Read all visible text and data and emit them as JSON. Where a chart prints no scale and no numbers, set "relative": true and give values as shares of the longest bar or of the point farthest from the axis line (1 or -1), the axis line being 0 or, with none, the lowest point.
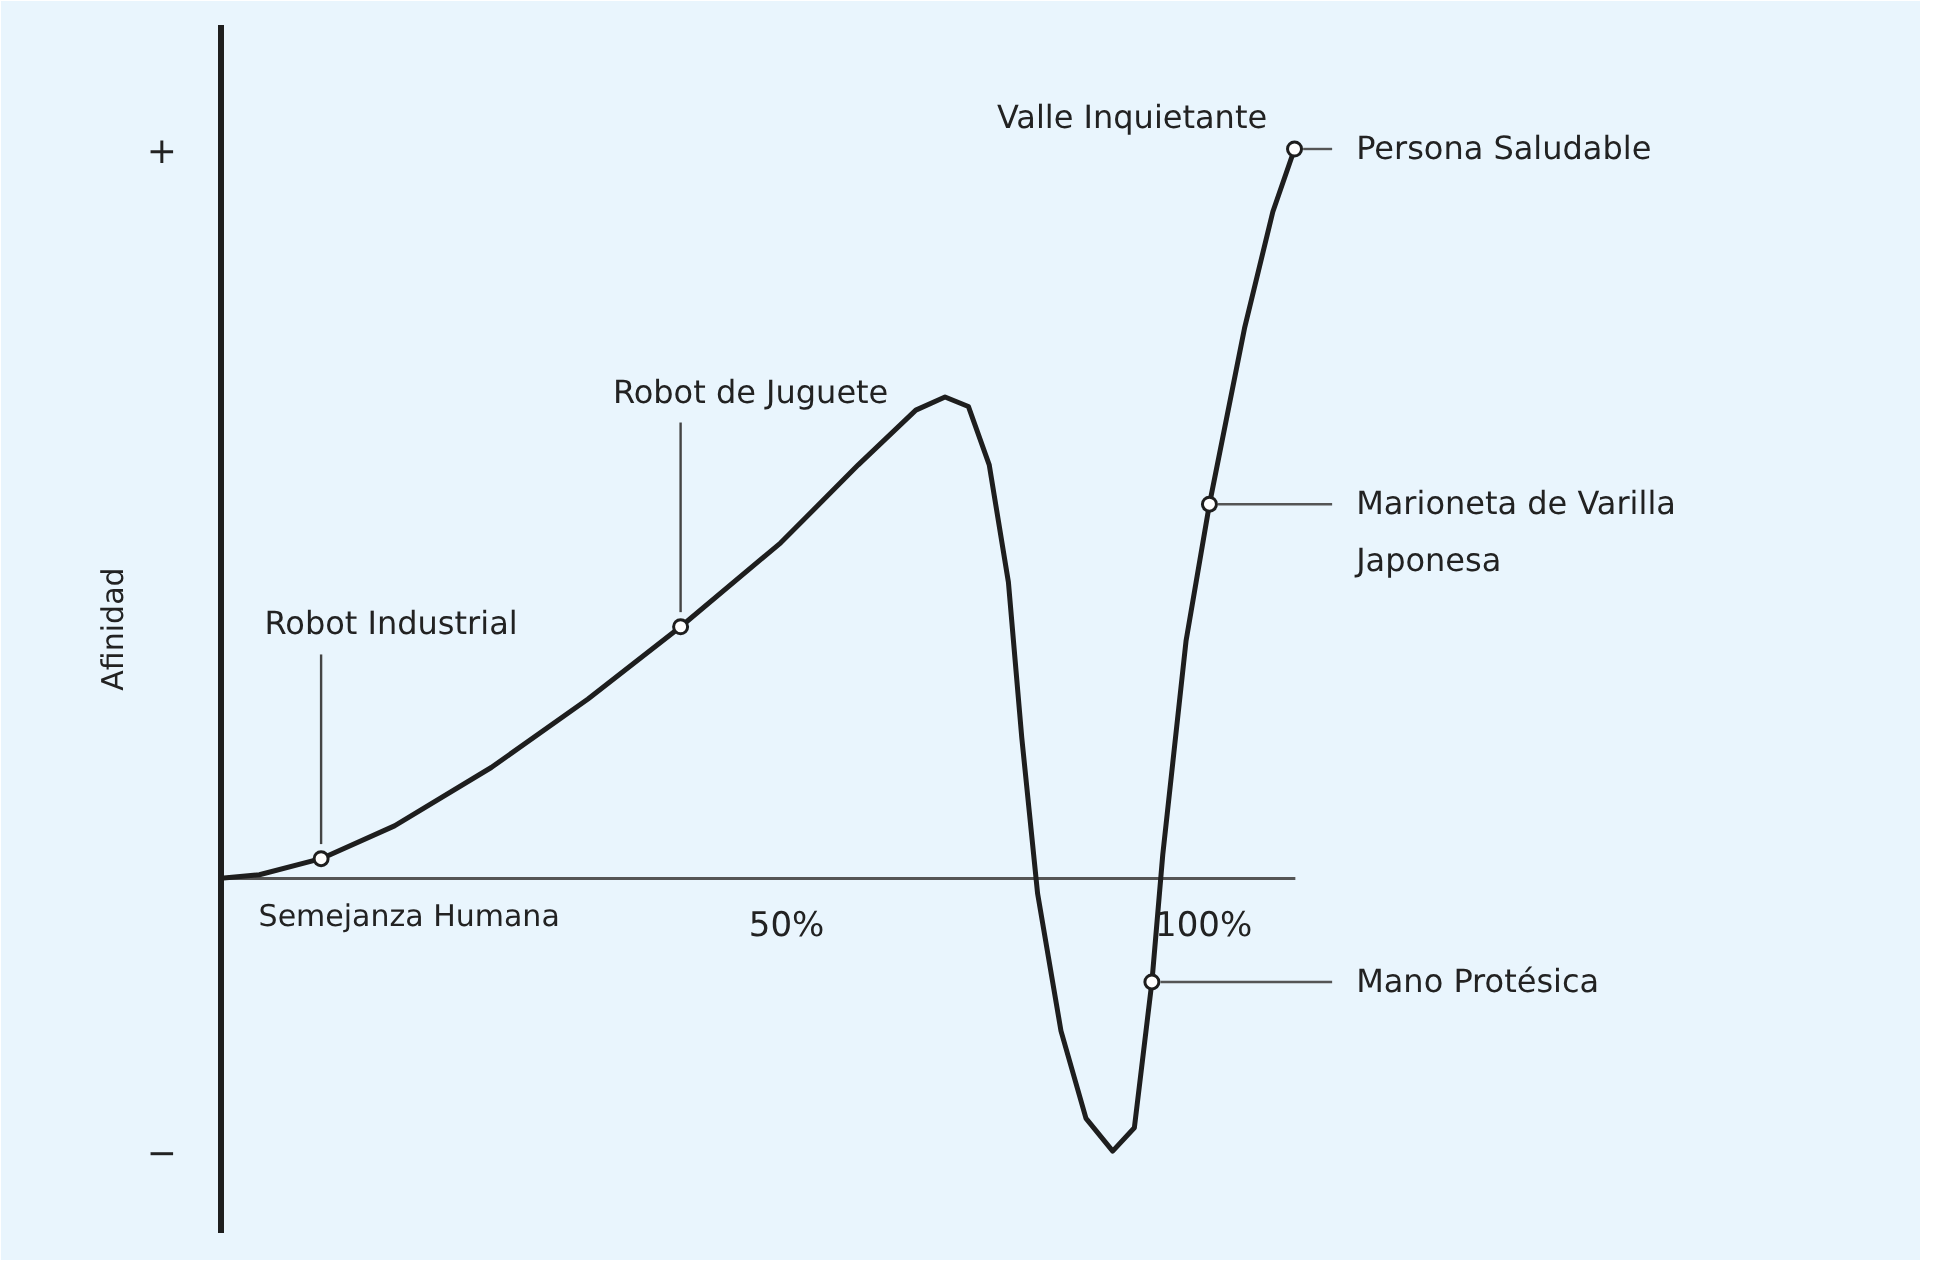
{
  "chart_data": {
    "type": "line",
    "relative": true,
    "xlabel": "Semejanza Humana",
    "ylabel": "Afinidad",
    "xlim": [
      -17.8,
      111
    ],
    "xticks": [
      {
        "value": 50,
        "label": "50%"
      },
      {
        "value": 100,
        "label": "100%"
      }
    ],
    "grid": false,
    "series": [
      {
        "color": "#1e1e1e",
        "line_style": "solid",
        "marker": "none",
        "x": [
          -17.8,
          -13.2,
          -5.8,
          3.0,
          14.6,
          26.2,
          37.3,
          49.3,
          58.6,
          65.5,
          69.0,
          71.8,
          74.3,
          76.6,
          78.2,
          80.1,
          82.9,
          85.9,
          89.1,
          91.7,
          93.8,
          95.1,
          97.9,
          100.7,
          104.9,
          108.3,
          110.9
        ],
        "values": [
          0,
          0.005,
          0.027,
          0.072,
          0.152,
          0.246,
          0.345,
          0.46,
          0.567,
          0.642,
          0.66,
          0.647,
          0.567,
          0.406,
          0.193,
          -0.021,
          -0.209,
          -0.329,
          -0.374,
          -0.342,
          -0.142,
          0.032,
          0.326,
          0.513,
          0.754,
          0.914,
          1.0
        ]
      },
      {
        "type": "scatter",
        "marker": "circle",
        "color": "#1e1e1e",
        "x": [
          -5.8,
          37.3,
          93.8,
          100.7,
          110.9
        ],
        "values": [
          0.027,
          0.345,
          -0.142,
          0.513,
          1.0
        ]
      }
    ],
    "annotations": [
      {
        "text": "Robot Industrial",
        "x": -5.8,
        "y": 0.027
      },
      {
        "text": "Robot de Juguete",
        "x": 37.3,
        "y": 0.345
      },
      {
        "text": "Mano Protésica",
        "x": 93.8,
        "y": -0.142
      },
      {
        "text": "Marioneta de Varilla\nJaponesa",
        "x": 100.7,
        "y": 0.513
      },
      {
        "text": "Persona Saludable",
        "x": 110.9,
        "y": 1.0
      },
      "Valle Inquietante",
      "+",
      "−"
    ]
  }
}
